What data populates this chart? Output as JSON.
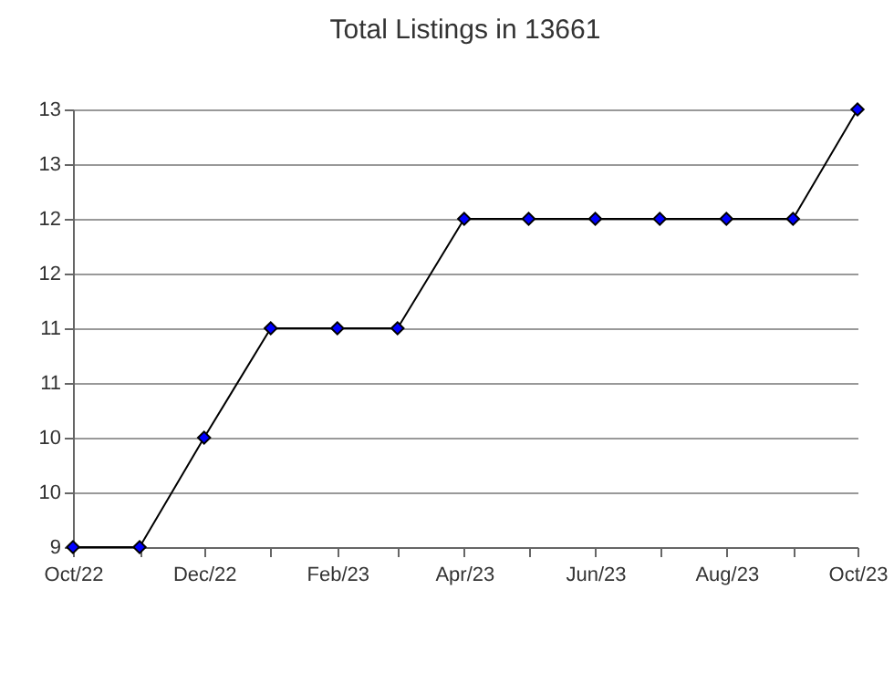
{
  "chart_data": {
    "type": "line",
    "title": "Total Listings in 13661",
    "x": [
      "2022-10",
      "2022-11",
      "2022-12",
      "2023-01",
      "2023-02",
      "2023-03",
      "2023-04",
      "2023-05",
      "2023-06",
      "2023-07",
      "2023-08",
      "2023-09",
      "2023-10"
    ],
    "series": [
      {
        "color": "#0000ff",
        "values": [
          9,
          9,
          10,
          11,
          11,
          11,
          12,
          12,
          12,
          12,
          12,
          12,
          13
        ]
      }
    ],
    "xlim": [
      "2022-10",
      "2023-10"
    ],
    "xticks": [
      {
        "value": "2022-10",
        "label": "Oct/22"
      },
      {
        "value": "2022-11",
        "label": null
      },
      {
        "value": "2022-12",
        "label": "Dec/22"
      },
      {
        "value": "2023-01",
        "label": null
      },
      {
        "value": "2023-02",
        "label": "Feb/23"
      },
      {
        "value": "2023-03",
        "label": null
      },
      {
        "value": "2023-04",
        "label": "Apr/23"
      },
      {
        "value": "2023-05",
        "label": null
      },
      {
        "value": "2023-06",
        "label": "Jun/23"
      },
      {
        "value": "2023-07",
        "label": null
      },
      {
        "value": "2023-08",
        "label": "Aug/23"
      },
      {
        "value": "2023-09",
        "label": null
      },
      {
        "value": "2023-10",
        "label": "Oct/23"
      }
    ],
    "ylim": [
      9,
      13
    ],
    "yticks": [
      {
        "value": 9,
        "label": "9"
      },
      {
        "value": 9.5,
        "label": "10"
      },
      {
        "value": 10,
        "label": "10"
      },
      {
        "value": 10.5,
        "label": "11"
      },
      {
        "value": 11,
        "label": "11"
      },
      {
        "value": 11.5,
        "label": "12"
      },
      {
        "value": 12,
        "label": "12"
      },
      {
        "value": 12.5,
        "label": "13"
      },
      {
        "value": 13,
        "label": "13"
      }
    ],
    "grid": "y",
    "marker": "diamond",
    "line_style": "solid"
  }
}
